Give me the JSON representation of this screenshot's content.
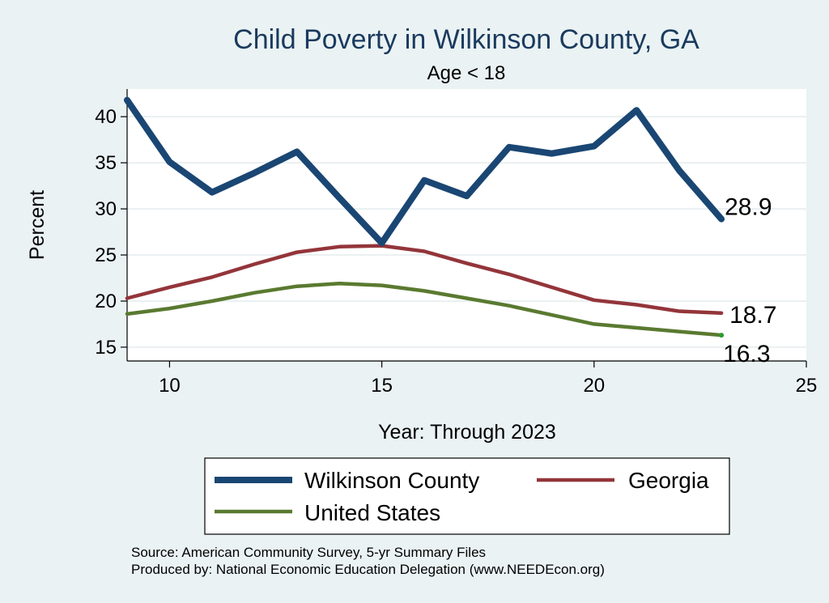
{
  "chart_data": {
    "type": "line",
    "title": "Child Poverty in Wilkinson County, GA",
    "subtitle": "Age < 18",
    "xlabel": "Year: Through 2023",
    "ylabel": "Percent",
    "xlim": [
      9,
      25
    ],
    "ylim": [
      13.5,
      43.0
    ],
    "xticks": [
      10,
      15,
      20,
      25
    ],
    "yticks": [
      15,
      20,
      25,
      30,
      35,
      40
    ],
    "x": [
      9,
      10,
      11,
      12,
      13,
      14,
      15,
      16,
      17,
      18,
      19,
      20,
      21,
      22,
      23
    ],
    "series": [
      {
        "name": "Wilkinson County",
        "color": "#1a4673",
        "values": [
          41.8,
          35.1,
          31.8,
          33.9,
          36.2,
          31.2,
          26.3,
          33.1,
          31.4,
          36.7,
          36.0,
          36.8,
          40.7,
          34.2,
          28.9
        ],
        "end_label": "28.9"
      },
      {
        "name": "Georgia",
        "color": "#93353a",
        "values": [
          20.3,
          21.5,
          22.6,
          24.0,
          25.3,
          25.9,
          26.0,
          25.4,
          24.1,
          22.9,
          21.5,
          20.1,
          19.6,
          18.9,
          18.7
        ],
        "end_label": "18.7"
      },
      {
        "name": "United States",
        "color": "#5a7a30",
        "values": [
          18.6,
          19.2,
          20.0,
          20.9,
          21.6,
          21.9,
          21.7,
          21.1,
          20.3,
          19.5,
          18.5,
          17.5,
          17.1,
          16.7,
          16.3
        ],
        "end_label": "16.3"
      }
    ],
    "legend": [
      "Wilkinson County",
      "Georgia",
      "United States"
    ],
    "grid": true,
    "legend_position": "bottom"
  },
  "source_lines": [
    "Source: American Community Survey, 5-yr Summary Files",
    "Produced by: National Economic Education Delegation (www.NEEDEcon.org)"
  ]
}
